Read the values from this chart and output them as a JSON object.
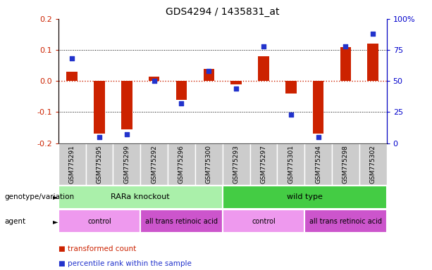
{
  "title": "GDS4294 / 1435831_at",
  "samples": [
    "GSM775291",
    "GSM775295",
    "GSM775299",
    "GSM775292",
    "GSM775296",
    "GSM775300",
    "GSM775293",
    "GSM775297",
    "GSM775301",
    "GSM775294",
    "GSM775298",
    "GSM775302"
  ],
  "transformed_count": [
    0.03,
    -0.17,
    -0.155,
    0.015,
    -0.06,
    0.04,
    -0.01,
    0.08,
    -0.04,
    -0.17,
    0.11,
    0.12
  ],
  "percentile_rank": [
    68,
    5,
    7,
    50,
    32,
    58,
    44,
    78,
    23,
    5,
    78,
    88
  ],
  "ylim_left": [
    -0.2,
    0.2
  ],
  "ylim_right": [
    0,
    100
  ],
  "yticks_left": [
    -0.2,
    -0.1,
    0.0,
    0.1,
    0.2
  ],
  "yticks_right": [
    0,
    25,
    50,
    75,
    100
  ],
  "ytick_labels_right": [
    "0",
    "25",
    "50",
    "75",
    "100%"
  ],
  "bar_color": "#cc2200",
  "dot_color": "#2233cc",
  "zero_line_color": "#cc2200",
  "dotted_line_color": "#000000",
  "genotype_groups": [
    {
      "label": "RARa knockout",
      "start": 0,
      "end": 6,
      "color": "#aaf0aa"
    },
    {
      "label": "wild type",
      "start": 6,
      "end": 12,
      "color": "#44cc44"
    }
  ],
  "agent_groups": [
    {
      "label": "control",
      "start": 0,
      "end": 3,
      "color": "#ee99ee"
    },
    {
      "label": "all trans retinoic acid",
      "start": 3,
      "end": 6,
      "color": "#cc55cc"
    },
    {
      "label": "control",
      "start": 6,
      "end": 9,
      "color": "#ee99ee"
    },
    {
      "label": "all trans retinoic acid",
      "start": 9,
      "end": 12,
      "color": "#cc55cc"
    }
  ],
  "legend_items": [
    {
      "label": "transformed count",
      "color": "#cc2200"
    },
    {
      "label": "percentile rank within the sample",
      "color": "#2233cc"
    }
  ],
  "row_labels": [
    "genotype/variation",
    "agent"
  ],
  "background_color": "#ffffff",
  "tick_bg_color": "#cccccc"
}
